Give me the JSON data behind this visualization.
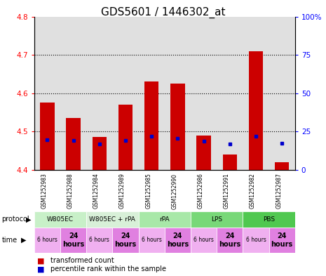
{
  "title": "GDS5601 / 1446302_at",
  "samples": [
    "GSM1252983",
    "GSM1252988",
    "GSM1252984",
    "GSM1252989",
    "GSM1252985",
    "GSM1252990",
    "GSM1252986",
    "GSM1252991",
    "GSM1252982",
    "GSM1252987"
  ],
  "red_values": [
    4.575,
    4.535,
    4.485,
    4.57,
    4.63,
    4.625,
    4.49,
    4.44,
    4.71,
    4.42
  ],
  "blue_values": [
    4.478,
    4.477,
    4.468,
    4.476,
    4.487,
    4.482,
    4.474,
    4.467,
    4.488,
    4.47
  ],
  "ylim": [
    4.4,
    4.8
  ],
  "yticks": [
    4.4,
    4.5,
    4.6,
    4.7,
    4.8
  ],
  "y2ticks": [
    0,
    25,
    50,
    75,
    100
  ],
  "y2tick_labels": [
    "0",
    "25",
    "50",
    "75",
    "100%"
  ],
  "protocols": [
    {
      "label": "W805EC",
      "start": 0,
      "end": 2,
      "color": "#c8f0c8"
    },
    {
      "label": "W805EC + rPA",
      "start": 2,
      "end": 4,
      "color": "#d8f0d8"
    },
    {
      "label": "rPA",
      "start": 4,
      "end": 6,
      "color": "#a8e8a8"
    },
    {
      "label": "LPS",
      "start": 6,
      "end": 8,
      "color": "#78d878"
    },
    {
      "label": "PBS",
      "start": 8,
      "end": 10,
      "color": "#50c850"
    }
  ],
  "times": [
    "6 hours",
    "24\nhours",
    "6 hours",
    "24\nhours",
    "6 hours",
    "24\nhours",
    "6 hours",
    "24\nhours",
    "6 hours",
    "24\nhours"
  ],
  "time_colors": [
    "#f0b0f0",
    "#e080e0",
    "#f0b0f0",
    "#e080e0",
    "#f0b0f0",
    "#e080e0",
    "#f0b0f0",
    "#e080e0",
    "#f0b0f0",
    "#e080e0"
  ],
  "bar_color": "#cc0000",
  "blue_color": "#0000cc",
  "bg_color": "#e0e0e0",
  "title_fontsize": 11,
  "grid_yticks": [
    4.5,
    4.6,
    4.7
  ]
}
